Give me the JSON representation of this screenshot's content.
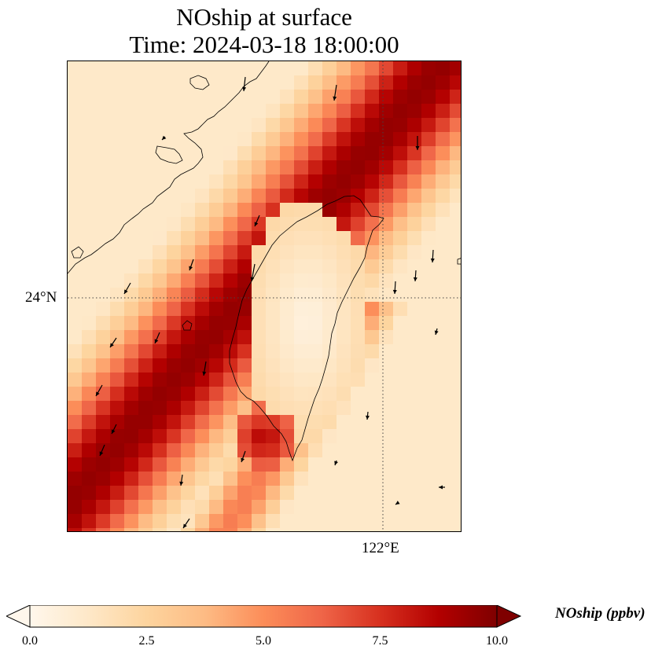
{
  "title": {
    "line1": "NOship at surface",
    "line2": "Time: 2024-03-18 18:00:00"
  },
  "map": {
    "lat_label": "24°N",
    "lon_label": "122°E"
  },
  "colorbar": {
    "label": "NOship (ppbv)",
    "min": 0.0,
    "max": 10.0,
    "ticks": [
      "0.0",
      "2.5",
      "5.0",
      "7.5",
      "10.0"
    ],
    "colormap": "OrRd",
    "colors": [
      "#fff7ec",
      "#fee8c8",
      "#fdd49e",
      "#fdbb84",
      "#fc8d59",
      "#ef6548",
      "#d7301f",
      "#b30000",
      "#7f0000"
    ],
    "extend": "both"
  }
}
